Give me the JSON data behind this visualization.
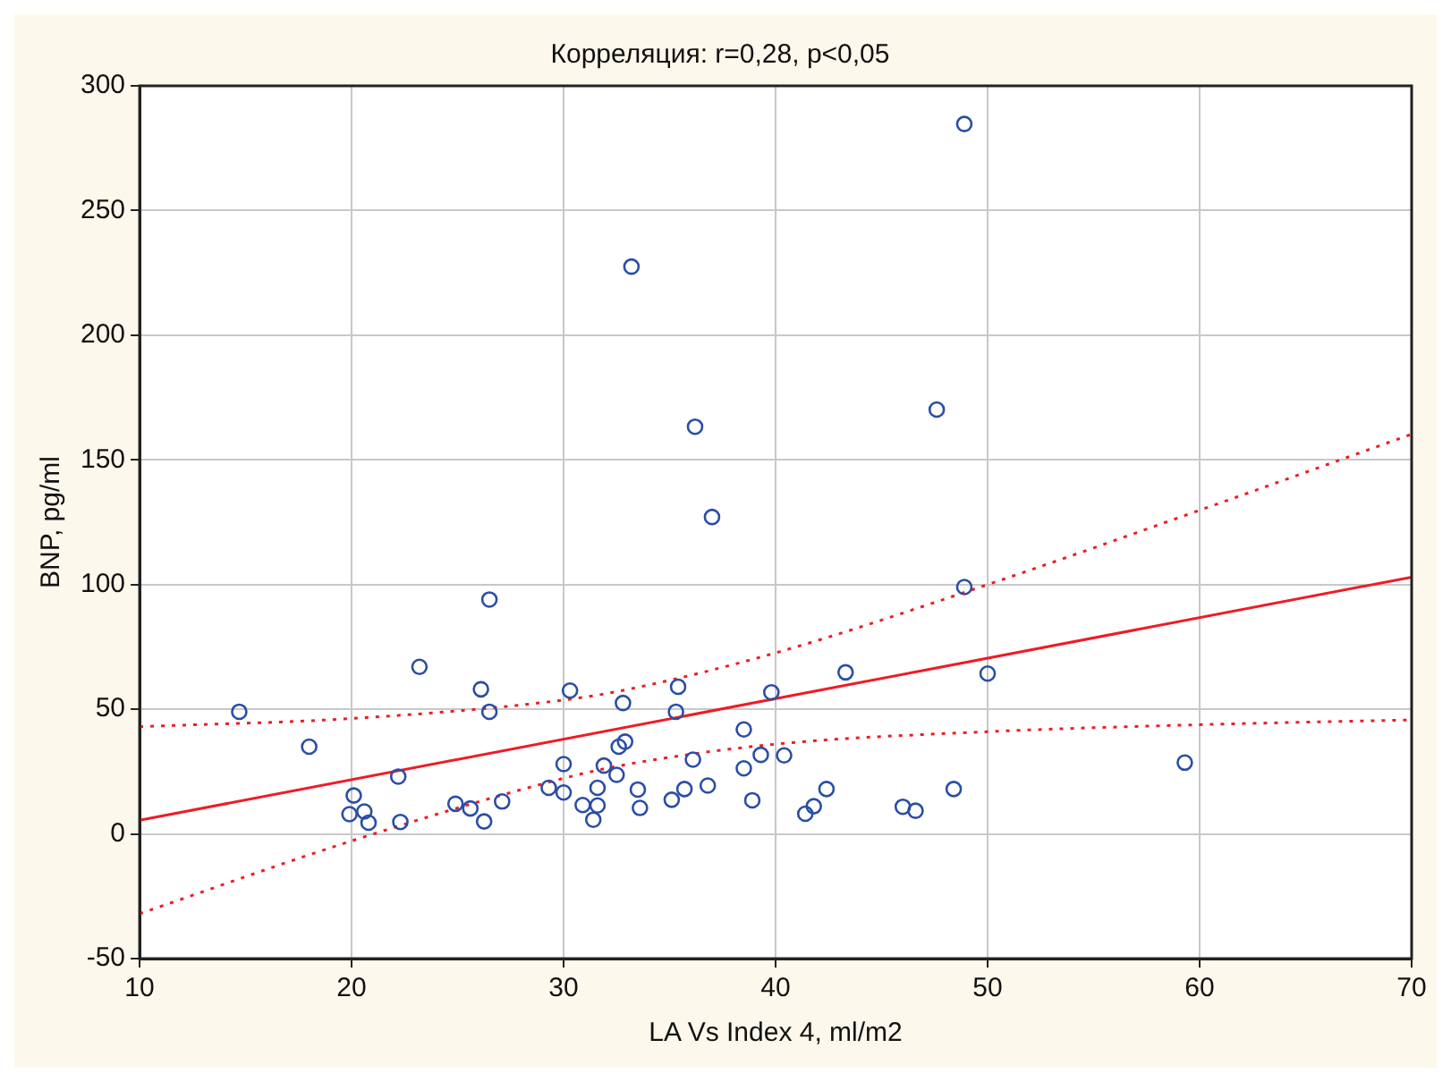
{
  "chart_data": {
    "type": "scatter",
    "title": "Корреляция: r=0,28, p<0,05",
    "xlabel": "LA Vs Index 4, ml/m2",
    "ylabel": "BNP, pg/ml",
    "xlim": [
      10,
      70
    ],
    "xticks": [
      10,
      20,
      30,
      40,
      50,
      60,
      70
    ],
    "ylim": [
      -50,
      300
    ],
    "yticks": [
      -50,
      0,
      50,
      100,
      150,
      200,
      250,
      300
    ],
    "grid": true,
    "legend": false,
    "marker": "circle",
    "series": [
      {
        "type": "scatter",
        "color": "#2a4ea6",
        "x": [
          14.7,
          18.0,
          23.2,
          22.2,
          20.1,
          19.9,
          20.6,
          20.8,
          22.3,
          24.9,
          25.6,
          26.25,
          27.1,
          26.5,
          26.1,
          26.5,
          29.3,
          30.0,
          30.0,
          30.3,
          32.8,
          35.4,
          35.3,
          39.8,
          43.3,
          48.9,
          50.0,
          30.9,
          31.6,
          31.6,
          31.4,
          31.9,
          32.5,
          32.6,
          32.9,
          33.5,
          33.6,
          35.1,
          35.7,
          36.1,
          36.8,
          38.5,
          38.5,
          39.3,
          40.4,
          38.9,
          42.4,
          41.8,
          41.4,
          46.0,
          46.6,
          48.4,
          59.3,
          48.9,
          33.2,
          36.2,
          47.6,
          37.0
        ],
        "values": [
          49,
          35,
          67,
          23,
          15.4,
          7.9,
          9,
          4.5,
          4.8,
          12.1,
          10.2,
          5,
          13,
          49,
          58,
          94,
          18.5,
          28,
          16.6,
          57.5,
          52.5,
          59,
          49,
          56.8,
          64.8,
          99,
          64.3,
          11.6,
          18.5,
          11.4,
          5.7,
          27.4,
          23.7,
          35,
          37,
          17.8,
          10.4,
          13.7,
          18,
          29.8,
          19.4,
          41.9,
          26.3,
          31.7,
          31.5,
          13.5,
          18,
          11.1,
          8.1,
          10.9,
          9.3,
          18,
          28.6,
          284.7,
          227.5,
          163.3,
          170.2,
          127.1
        ]
      },
      {
        "type": "line",
        "color": "#ee1c25",
        "line_style": "solid",
        "marker": "none",
        "x": [
          10,
          70
        ],
        "values": [
          5.5,
          103
        ]
      },
      {
        "type": "line",
        "color": "#ee1c25",
        "line_style": "dotted",
        "marker": "none",
        "x": [
          10,
          20,
          30,
          33,
          40,
          50,
          60,
          70
        ],
        "values": [
          43,
          46.3,
          53.7,
          57.9,
          72.6,
          100,
          129.8,
          160.3
        ]
      },
      {
        "type": "line",
        "color": "#ee1c25",
        "line_style": "dotted",
        "marker": "none",
        "x": [
          10,
          20,
          30,
          33,
          40,
          50,
          60,
          70
        ],
        "values": [
          -32,
          -2.8,
          22.3,
          27.9,
          36,
          41,
          43.8,
          45.7
        ]
      }
    ]
  }
}
